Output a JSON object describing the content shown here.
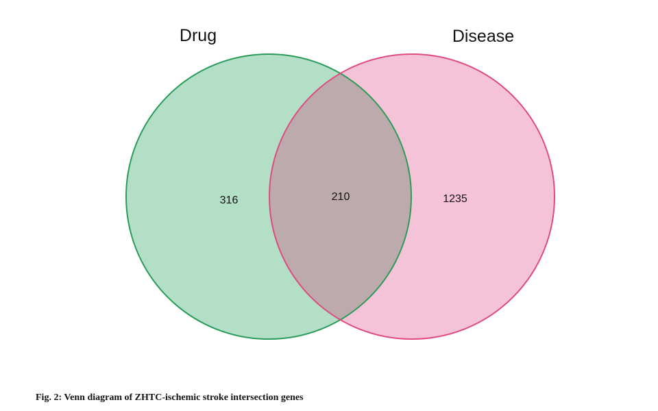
{
  "chart_data": {
    "type": "venn",
    "sets": [
      {
        "name": "Drug",
        "color": "#b3dfc6",
        "stroke": "#2a9a5a"
      },
      {
        "name": "Disease",
        "color": "#f5c3d7",
        "stroke": "#df4a82"
      }
    ],
    "overlap_color": "#bcaaad",
    "values": [
      316,
      210,
      1235
    ],
    "caption": "Fig. 2: Venn diagram of ZHTC-ischemic stroke intersection genes"
  }
}
